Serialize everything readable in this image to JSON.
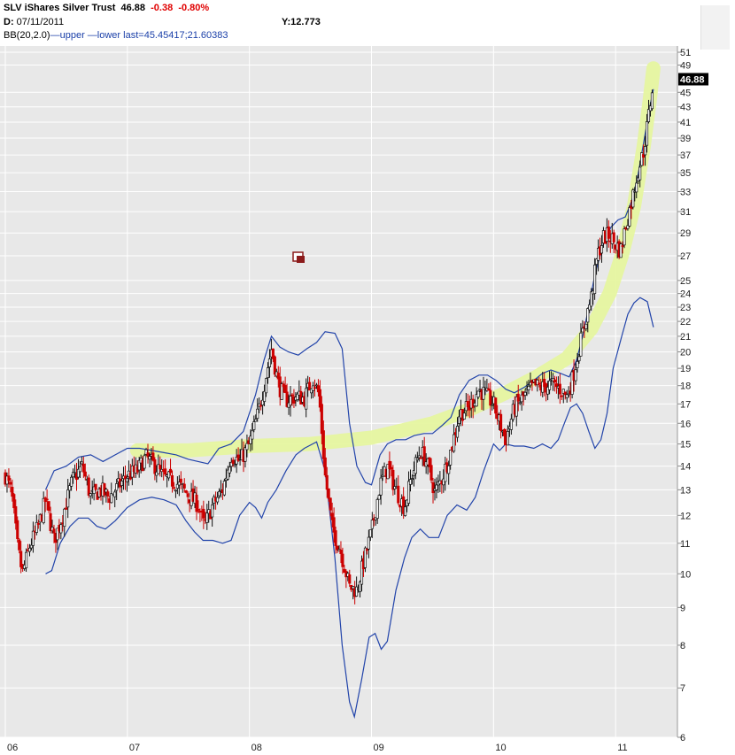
{
  "header": {
    "symbol": "SLV",
    "name": "iShares Silver Trust",
    "last": "46.88",
    "change": "-0.38",
    "change_pct": "-0.80%",
    "date_label": "D:",
    "date": "07/11/2011",
    "y_label": "Y:12.773",
    "indicator": "BB(20,2.0)",
    "upper_label": "upper",
    "lower_label": "lower",
    "bb_last": "last=45.45417;21.60383"
  },
  "colors": {
    "up": "#111111",
    "down": "#cc0000",
    "band": "#2244aa",
    "highlight": "#e6f5a0",
    "plot_bg": "#e8e8e8",
    "grid": "#ffffff"
  },
  "chart_data": {
    "type": "candlestick",
    "scale": "log",
    "ylim": [
      6,
      52
    ],
    "y_ticks": [
      6,
      7,
      8,
      9,
      10,
      11,
      12,
      13,
      14,
      15,
      16,
      17,
      18,
      19,
      20,
      21,
      22,
      23,
      24,
      25,
      27,
      29,
      31,
      33,
      35,
      37,
      39,
      41,
      43,
      45,
      49,
      51
    ],
    "x_ticks": [
      "06",
      "07",
      "08",
      "09",
      "10",
      "11"
    ],
    "x_tick_years": [
      2006,
      2007,
      2008,
      2009,
      2010,
      2011
    ],
    "xlim": [
      2006.0,
      2011.55
    ],
    "last_price_label": "46.88",
    "close_path": [
      [
        2006.0,
        13.6
      ],
      [
        2006.05,
        12.9
      ],
      [
        2006.1,
        10.9
      ],
      [
        2006.14,
        10.0
      ],
      [
        2006.2,
        10.9
      ],
      [
        2006.27,
        11.6
      ],
      [
        2006.33,
        12.6
      ],
      [
        2006.4,
        11.1
      ],
      [
        2006.47,
        12.0
      ],
      [
        2006.55,
        13.4
      ],
      [
        2006.63,
        14.0
      ],
      [
        2006.7,
        12.7
      ],
      [
        2006.78,
        13.0
      ],
      [
        2006.85,
        12.7
      ],
      [
        2006.92,
        13.1
      ],
      [
        2007.0,
        13.6
      ],
      [
        2007.08,
        13.8
      ],
      [
        2007.15,
        14.4
      ],
      [
        2007.23,
        14.0
      ],
      [
        2007.3,
        13.5
      ],
      [
        2007.4,
        13.3
      ],
      [
        2007.5,
        12.8
      ],
      [
        2007.58,
        12.4
      ],
      [
        2007.63,
        11.6
      ],
      [
        2007.7,
        12.4
      ],
      [
        2007.78,
        13.0
      ],
      [
        2007.85,
        14.5
      ],
      [
        2007.92,
        14.2
      ],
      [
        2008.0,
        15.0
      ],
      [
        2008.07,
        16.5
      ],
      [
        2008.12,
        18.0
      ],
      [
        2008.18,
        20.2
      ],
      [
        2008.24,
        18.0
      ],
      [
        2008.3,
        17.2
      ],
      [
        2008.38,
        17.4
      ],
      [
        2008.45,
        17.3
      ],
      [
        2008.52,
        18.4
      ],
      [
        2008.57,
        17.5
      ],
      [
        2008.62,
        13.6
      ],
      [
        2008.68,
        11.5
      ],
      [
        2008.75,
        10.7
      ],
      [
        2008.82,
        9.6
      ],
      [
        2008.88,
        9.5
      ],
      [
        2008.93,
        10.3
      ],
      [
        2009.0,
        11.4
      ],
      [
        2009.07,
        13.2
      ],
      [
        2009.13,
        14.0
      ],
      [
        2009.2,
        13.0
      ],
      [
        2009.27,
        12.3
      ],
      [
        2009.33,
        13.6
      ],
      [
        2009.4,
        14.7
      ],
      [
        2009.45,
        14.2
      ],
      [
        2009.52,
        12.9
      ],
      [
        2009.58,
        13.5
      ],
      [
        2009.65,
        14.7
      ],
      [
        2009.72,
        16.5
      ],
      [
        2009.8,
        16.8
      ],
      [
        2009.88,
        17.8
      ],
      [
        2009.93,
        17.5
      ],
      [
        2010.0,
        17.0
      ],
      [
        2010.05,
        16.0
      ],
      [
        2010.1,
        15.2
      ],
      [
        2010.17,
        16.8
      ],
      [
        2010.25,
        17.4
      ],
      [
        2010.33,
        18.0
      ],
      [
        2010.4,
        17.9
      ],
      [
        2010.47,
        18.1
      ],
      [
        2010.55,
        17.8
      ],
      [
        2010.6,
        17.4
      ],
      [
        2010.65,
        18.5
      ],
      [
        2010.7,
        20.2
      ],
      [
        2010.75,
        22.0
      ],
      [
        2010.8,
        23.7
      ],
      [
        2010.85,
        27.0
      ],
      [
        2010.9,
        28.6
      ],
      [
        2010.95,
        28.8
      ],
      [
        2011.0,
        28.0
      ],
      [
        2011.04,
        27.4
      ],
      [
        2011.08,
        29.5
      ],
      [
        2011.13,
        32.0
      ],
      [
        2011.18,
        35.0
      ],
      [
        2011.23,
        37.5
      ],
      [
        2011.28,
        43.0
      ],
      [
        2011.31,
        46.9
      ]
    ],
    "upper_band": [
      [
        2006.33,
        13.0
      ],
      [
        2006.4,
        13.8
      ],
      [
        2006.5,
        14.0
      ],
      [
        2006.6,
        14.4
      ],
      [
        2006.7,
        14.5
      ],
      [
        2006.8,
        14.2
      ],
      [
        2006.9,
        14.5
      ],
      [
        2007.0,
        14.8
      ],
      [
        2007.1,
        14.8
      ],
      [
        2007.2,
        14.7
      ],
      [
        2007.3,
        14.6
      ],
      [
        2007.4,
        14.5
      ],
      [
        2007.5,
        14.3
      ],
      [
        2007.58,
        14.2
      ],
      [
        2007.66,
        14.1
      ],
      [
        2007.75,
        14.8
      ],
      [
        2007.85,
        15.0
      ],
      [
        2007.95,
        15.6
      ],
      [
        2008.05,
        17.5
      ],
      [
        2008.12,
        19.5
      ],
      [
        2008.18,
        21.0
      ],
      [
        2008.25,
        20.3
      ],
      [
        2008.32,
        20.0
      ],
      [
        2008.4,
        19.8
      ],
      [
        2008.47,
        20.2
      ],
      [
        2008.55,
        20.6
      ],
      [
        2008.62,
        21.3
      ],
      [
        2008.7,
        21.2
      ],
      [
        2008.76,
        20.2
      ],
      [
        2008.82,
        16.0
      ],
      [
        2008.88,
        14.0
      ],
      [
        2008.95,
        13.3
      ],
      [
        2009.0,
        13.2
      ],
      [
        2009.07,
        14.5
      ],
      [
        2009.13,
        15.0
      ],
      [
        2009.2,
        15.2
      ],
      [
        2009.28,
        15.2
      ],
      [
        2009.35,
        15.4
      ],
      [
        2009.43,
        15.5
      ],
      [
        2009.5,
        15.5
      ],
      [
        2009.58,
        15.9
      ],
      [
        2009.65,
        16.3
      ],
      [
        2009.72,
        17.5
      ],
      [
        2009.8,
        18.3
      ],
      [
        2009.88,
        18.6
      ],
      [
        2009.95,
        18.6
      ],
      [
        2010.02,
        18.3
      ],
      [
        2010.1,
        17.8
      ],
      [
        2010.17,
        17.6
      ],
      [
        2010.25,
        17.9
      ],
      [
        2010.33,
        18.3
      ],
      [
        2010.4,
        18.7
      ],
      [
        2010.47,
        18.9
      ],
      [
        2010.55,
        18.7
      ],
      [
        2010.62,
        18.5
      ],
      [
        2010.68,
        19.5
      ],
      [
        2010.73,
        21.0
      ],
      [
        2010.78,
        23.0
      ],
      [
        2010.83,
        25.5
      ],
      [
        2010.9,
        28.0
      ],
      [
        2010.96,
        29.5
      ],
      [
        2011.02,
        30.2
      ],
      [
        2011.08,
        30.5
      ],
      [
        2011.13,
        32.0
      ],
      [
        2011.18,
        34.5
      ],
      [
        2011.23,
        38.5
      ],
      [
        2011.28,
        43.0
      ],
      [
        2011.31,
        45.45
      ]
    ],
    "lower_band": [
      [
        2006.33,
        10.0
      ],
      [
        2006.38,
        10.1
      ],
      [
        2006.45,
        11.0
      ],
      [
        2006.53,
        11.6
      ],
      [
        2006.6,
        11.9
      ],
      [
        2006.68,
        11.9
      ],
      [
        2006.75,
        11.6
      ],
      [
        2006.82,
        11.5
      ],
      [
        2006.9,
        11.8
      ],
      [
        2007.0,
        12.3
      ],
      [
        2007.1,
        12.6
      ],
      [
        2007.2,
        12.7
      ],
      [
        2007.3,
        12.6
      ],
      [
        2007.4,
        12.4
      ],
      [
        2007.48,
        11.8
      ],
      [
        2007.55,
        11.4
      ],
      [
        2007.62,
        11.1
      ],
      [
        2007.7,
        11.1
      ],
      [
        2007.78,
        11.0
      ],
      [
        2007.85,
        11.1
      ],
      [
        2007.92,
        12.0
      ],
      [
        2008.0,
        12.5
      ],
      [
        2008.05,
        12.3
      ],
      [
        2008.1,
        11.9
      ],
      [
        2008.15,
        12.5
      ],
      [
        2008.22,
        13.0
      ],
      [
        2008.3,
        13.8
      ],
      [
        2008.38,
        14.5
      ],
      [
        2008.45,
        14.8
      ],
      [
        2008.55,
        15.1
      ],
      [
        2008.62,
        13.8
      ],
      [
        2008.7,
        10.5
      ],
      [
        2008.76,
        8.0
      ],
      [
        2008.82,
        6.7
      ],
      [
        2008.86,
        6.4
      ],
      [
        2008.92,
        7.2
      ],
      [
        2008.98,
        8.2
      ],
      [
        2009.03,
        8.3
      ],
      [
        2009.08,
        7.9
      ],
      [
        2009.13,
        8.1
      ],
      [
        2009.2,
        9.5
      ],
      [
        2009.27,
        10.5
      ],
      [
        2009.33,
        11.2
      ],
      [
        2009.4,
        11.5
      ],
      [
        2009.47,
        11.2
      ],
      [
        2009.55,
        11.2
      ],
      [
        2009.62,
        12.0
      ],
      [
        2009.7,
        12.4
      ],
      [
        2009.78,
        12.2
      ],
      [
        2009.85,
        12.7
      ],
      [
        2009.92,
        13.8
      ],
      [
        2010.0,
        15.0
      ],
      [
        2010.05,
        14.7
      ],
      [
        2010.1,
        15.0
      ],
      [
        2010.17,
        14.9
      ],
      [
        2010.25,
        14.9
      ],
      [
        2010.33,
        14.8
      ],
      [
        2010.4,
        15.0
      ],
      [
        2010.47,
        14.8
      ],
      [
        2010.53,
        15.2
      ],
      [
        2010.58,
        16.0
      ],
      [
        2010.63,
        16.8
      ],
      [
        2010.68,
        17.0
      ],
      [
        2010.73,
        16.5
      ],
      [
        2010.78,
        15.6
      ],
      [
        2010.83,
        14.8
      ],
      [
        2010.88,
        15.2
      ],
      [
        2010.93,
        16.5
      ],
      [
        2010.98,
        19.0
      ],
      [
        2011.05,
        21.0
      ],
      [
        2011.1,
        22.5
      ],
      [
        2011.15,
        23.3
      ],
      [
        2011.2,
        23.7
      ],
      [
        2011.26,
        23.4
      ],
      [
        2011.31,
        21.6
      ]
    ],
    "highlight_curve": [
      [
        2007.08,
        14.7
      ],
      [
        2007.5,
        14.7
      ],
      [
        2008.0,
        14.9
      ],
      [
        2008.5,
        15.0
      ],
      [
        2009.0,
        15.3
      ],
      [
        2009.5,
        16.0
      ],
      [
        2009.8,
        16.7
      ],
      [
        2010.1,
        17.6
      ],
      [
        2010.35,
        18.5
      ],
      [
        2010.6,
        19.6
      ],
      [
        2010.8,
        21.5
      ],
      [
        2010.95,
        24.0
      ],
      [
        2011.05,
        27.0
      ],
      [
        2011.15,
        31.5
      ],
      [
        2011.23,
        38.0
      ],
      [
        2011.28,
        44.0
      ],
      [
        2011.31,
        48.5
      ]
    ]
  }
}
